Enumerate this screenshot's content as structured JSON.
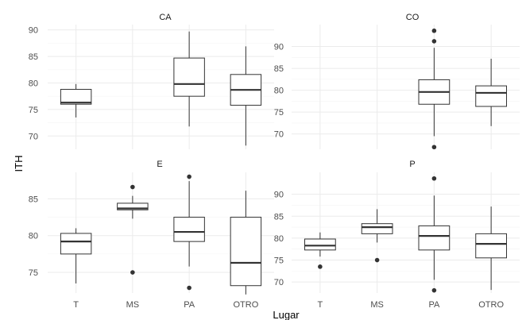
{
  "chart_data": {
    "type": "boxplot",
    "facet_layout": "2x2",
    "xlabel": "Lugar",
    "ylabel": "ITH",
    "categories": [
      "T",
      "MS",
      "PA",
      "OTRO"
    ],
    "grid": true,
    "colors": {
      "box_line": "#333333",
      "grid": "#ebebeb",
      "background": "#ffffff"
    },
    "panels": [
      {
        "title": "CA",
        "ylim": [
          67.5,
          91
        ],
        "yticks": [
          70,
          75,
          80,
          85,
          90
        ],
        "boxes": [
          {
            "category": "T",
            "min": 73.5,
            "q1": 76.0,
            "median": 76.3,
            "q3": 78.8,
            "max": 79.8,
            "outliers": []
          },
          {
            "category": "MS",
            "min": null,
            "q1": null,
            "median": null,
            "q3": null,
            "max": null,
            "outliers": []
          },
          {
            "category": "PA",
            "min": 71.8,
            "q1": 77.5,
            "median": 79.8,
            "q3": 84.7,
            "max": 89.7,
            "outliers": []
          },
          {
            "category": "OTRO",
            "min": 68.2,
            "q1": 75.8,
            "median": 78.7,
            "q3": 81.6,
            "max": 86.9,
            "outliers": []
          }
        ]
      },
      {
        "title": "CO",
        "ylim": [
          66.5,
          95
        ],
        "yticks": [
          70,
          75,
          80,
          85,
          90
        ],
        "boxes": [
          {
            "category": "T",
            "min": null,
            "q1": null,
            "median": null,
            "q3": null,
            "max": null,
            "outliers": []
          },
          {
            "category": "MS",
            "min": null,
            "q1": null,
            "median": null,
            "q3": null,
            "max": null,
            "outliers": []
          },
          {
            "category": "PA",
            "min": 69.5,
            "q1": 76.8,
            "median": 79.6,
            "q3": 82.4,
            "max": 89.7,
            "outliers": [
              93.6,
              91.2,
              67.0
            ]
          },
          {
            "category": "OTRO",
            "min": 71.8,
            "q1": 76.3,
            "median": 79.4,
            "q3": 81.0,
            "max": 87.2,
            "outliers": []
          }
        ]
      },
      {
        "title": "E",
        "ylim": [
          72.2,
          88.6
        ],
        "yticks": [
          75,
          80,
          85
        ],
        "boxes": [
          {
            "category": "T",
            "min": 73.5,
            "q1": 77.5,
            "median": 79.2,
            "q3": 80.3,
            "max": 81.0,
            "outliers": []
          },
          {
            "category": "MS",
            "min": 82.3,
            "q1": 83.5,
            "median": 83.7,
            "q3": 84.4,
            "max": 85.4,
            "outliers": [
              86.6,
              75.0
            ]
          },
          {
            "category": "PA",
            "min": 75.8,
            "q1": 79.2,
            "median": 80.5,
            "q3": 82.5,
            "max": 87.4,
            "outliers": [
              88.0,
              72.9
            ]
          },
          {
            "category": "OTRO",
            "min": 72.0,
            "q1": 73.2,
            "median": 76.3,
            "q3": 82.5,
            "max": 86.1,
            "outliers": []
          }
        ]
      },
      {
        "title": "P",
        "ylim": [
          67.5,
          95
        ],
        "yticks": [
          70,
          75,
          80,
          85,
          90
        ],
        "boxes": [
          {
            "category": "T",
            "min": 75.8,
            "q1": 77.3,
            "median": 78.3,
            "q3": 79.8,
            "max": 81.3,
            "outliers": [
              73.5
            ]
          },
          {
            "category": "MS",
            "min": 79.0,
            "q1": 81.0,
            "median": 82.5,
            "q3": 83.3,
            "max": 86.6,
            "outliers": [
              75.0
            ]
          },
          {
            "category": "PA",
            "min": 70.5,
            "q1": 77.3,
            "median": 80.5,
            "q3": 82.8,
            "max": 89.7,
            "outliers": [
              93.6,
              68.1
            ]
          },
          {
            "category": "OTRO",
            "min": 68.2,
            "q1": 75.5,
            "median": 78.7,
            "q3": 81.0,
            "max": 87.2,
            "outliers": []
          }
        ]
      }
    ]
  }
}
